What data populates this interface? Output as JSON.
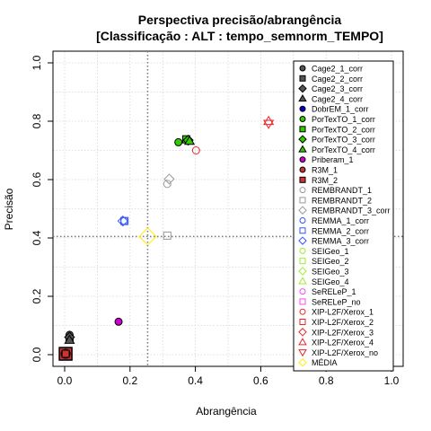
{
  "chart_data": {
    "type": "scatter",
    "title": "Perspectiva precisão/abrangência",
    "subtitle": "[Classificação : ALT : tempo_semnorm_TEMPO]",
    "xlabel": "Abrangência",
    "ylabel": "Precisão",
    "xlim": [
      0,
      1
    ],
    "ylim": [
      0,
      1
    ],
    "x_ticks": [
      "0.0",
      "0.2",
      "0.4",
      "0.6",
      "0.8",
      "1.0"
    ],
    "y_ticks": [
      "0.0",
      "0.2",
      "0.4",
      "0.6",
      "0.8",
      "1.0"
    ],
    "grid": true,
    "legend_position": "right",
    "reference_lines": {
      "x": 0.254,
      "y": 0.405
    },
    "series": [
      {
        "name": "Cage2_1_corr",
        "color": "#555555",
        "shape": "circle-filled",
        "x": 0.015,
        "y": 0.068
      },
      {
        "name": "Cage2_2_corr",
        "color": "#555555",
        "shape": "square-filled",
        "x": 0.015,
        "y": 0.055
      },
      {
        "name": "Cage2_3_corr",
        "color": "#555555",
        "shape": "diamond-filled",
        "x": 0.015,
        "y": 0.06
      },
      {
        "name": "Cage2_4_corr",
        "color": "#555555",
        "shape": "triangle-filled",
        "x": 0.015,
        "y": 0.05
      },
      {
        "name": "DobrEM_1_corr",
        "color": "#0000cc",
        "shape": "circle-filled",
        "x": 0.005,
        "y": 0.005
      },
      {
        "name": "PorTexTO_1_corr",
        "color": "#33cc00",
        "shape": "circle-filled",
        "x": 0.348,
        "y": 0.728
      },
      {
        "name": "PorTexTO_2_corr",
        "color": "#33cc00",
        "shape": "square-filled",
        "x": 0.372,
        "y": 0.738
      },
      {
        "name": "PorTexTO_3_corr",
        "color": "#33cc00",
        "shape": "diamond-filled",
        "x": 0.378,
        "y": 0.735
      },
      {
        "name": "PorTexTO_4_corr",
        "color": "#33cc00",
        "shape": "triangle-filled",
        "x": 0.382,
        "y": 0.732
      },
      {
        "name": "Priberam_1",
        "color": "#cc00cc",
        "shape": "circle-filled",
        "x": 0.165,
        "y": 0.113
      },
      {
        "name": "R3M_1",
        "color": "#cc3333",
        "shape": "circle-filled",
        "x": 0.003,
        "y": 0.003
      },
      {
        "name": "R3M_2",
        "color": "#cc3333",
        "shape": "square-filled",
        "x": 0.003,
        "y": 0.003
      },
      {
        "name": "REMBRANDT_1",
        "color": "#999999",
        "shape": "circle-open",
        "x": 0.314,
        "y": 0.585
      },
      {
        "name": "REMBRANDT_2",
        "color": "#999999",
        "shape": "square-open",
        "x": 0.314,
        "y": 0.408
      },
      {
        "name": "REMBRANDT_3_corr",
        "color": "#999999",
        "shape": "diamond-open",
        "x": 0.32,
        "y": 0.602
      },
      {
        "name": "REMMA_1_corr",
        "color": "#3355ff",
        "shape": "circle-open",
        "x": 0.183,
        "y": 0.458
      },
      {
        "name": "REMMA_2_corr",
        "color": "#3355ff",
        "shape": "square-open",
        "x": 0.183,
        "y": 0.458
      },
      {
        "name": "REMMA_3_corr",
        "color": "#3355ff",
        "shape": "diamond-open",
        "x": 0.178,
        "y": 0.458
      },
      {
        "name": "SEIGeo_1",
        "color": "#99ee33",
        "shape": "circle-open",
        "x": null,
        "y": null
      },
      {
        "name": "SEIGeo_2",
        "color": "#99ee33",
        "shape": "square-open",
        "x": null,
        "y": null
      },
      {
        "name": "SEIGeo_3",
        "color": "#99ee33",
        "shape": "diamond-open",
        "x": null,
        "y": null
      },
      {
        "name": "SEIGeo_4",
        "color": "#99ee33",
        "shape": "triangle-open",
        "x": null,
        "y": null
      },
      {
        "name": "SeRELeP_1",
        "color": "#ff44ff",
        "shape": "circle-open",
        "x": null,
        "y": null
      },
      {
        "name": "SeRELeP_no",
        "color": "#ff44ff",
        "shape": "square-open",
        "x": null,
        "y": null
      },
      {
        "name": "XIP-L2F/Xerox_1",
        "color": "#ee2222",
        "shape": "circle-open",
        "x": 0.402,
        "y": 0.7
      },
      {
        "name": "XIP-L2F/Xerox_2",
        "color": "#ee2222",
        "shape": "square-open",
        "x": null,
        "y": null
      },
      {
        "name": "XIP-L2F/Xerox_3",
        "color": "#ee2222",
        "shape": "diamond-open",
        "x": null,
        "y": null
      },
      {
        "name": "XIP-L2F/Xerox_4",
        "color": "#ee2222",
        "shape": "triangle-open",
        "x": 0.624,
        "y": 0.8
      },
      {
        "name": "XIP-L2F/Xerox_no",
        "color": "#ee2222",
        "shape": "triangle-down-open",
        "x": 0.624,
        "y": 0.792
      },
      {
        "name": "MÉDIA",
        "color": "#ffee00",
        "shape": "diamond-open",
        "x": 0.254,
        "y": 0.405
      }
    ],
    "overlay_marks": [
      {
        "label": "R3M cluster square",
        "color": "#cc3333",
        "shape": "square-big",
        "x": 0.003,
        "y": 0.003
      },
      {
        "label": "R3M cluster circle",
        "color": "#222222",
        "shape": "circle-big-filled",
        "x": 0.003,
        "y": 0.003
      }
    ]
  }
}
